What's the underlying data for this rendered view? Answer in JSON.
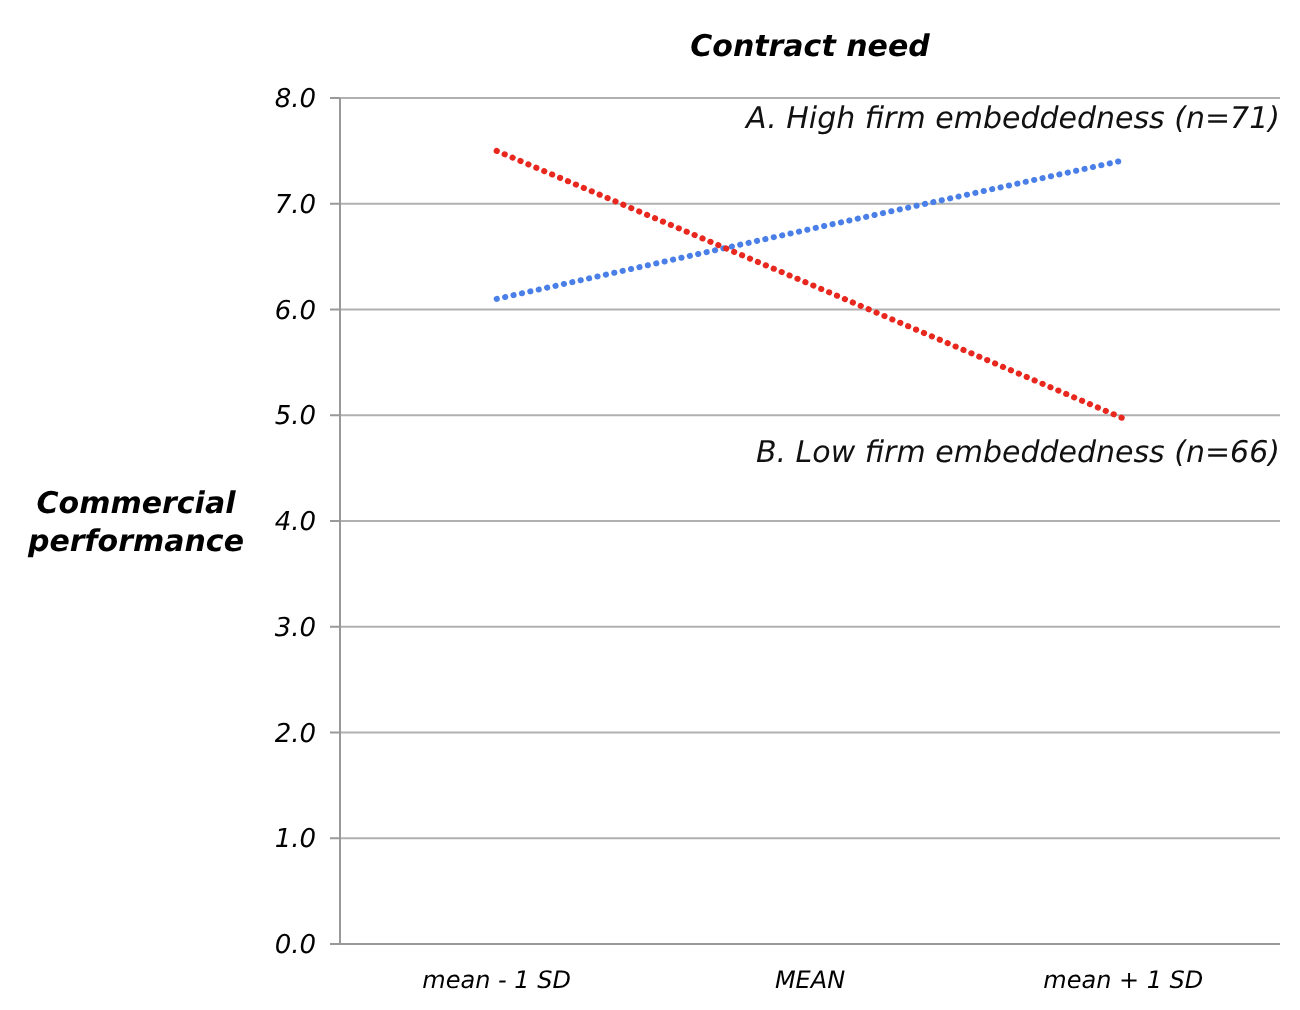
{
  "chart_data": {
    "type": "line",
    "title": "Contract need",
    "ylabel": "Commercial performance",
    "categories": [
      "mean - 1 SD",
      "MEAN",
      "mean + 1 SD"
    ],
    "series": [
      {
        "name": "A. High firm embeddedness (n=71)",
        "color": "#4a7fe8",
        "values": [
          6.1,
          6.76,
          7.41
        ]
      },
      {
        "name": "B. Low firm embeddedness (n=66)",
        "color": "#e8281e",
        "values": [
          7.5,
          6.24,
          4.97
        ]
      }
    ],
    "ylim": [
      0,
      8
    ],
    "yticks": [
      {
        "value": 0,
        "label": "0.0"
      },
      {
        "value": 1,
        "label": "1.0"
      },
      {
        "value": 2,
        "label": "2.0"
      },
      {
        "value": 3,
        "label": "3.0"
      },
      {
        "value": 4,
        "label": "4.0"
      },
      {
        "value": 5,
        "label": "5.0"
      },
      {
        "value": 6,
        "label": "6.0"
      },
      {
        "value": 7,
        "label": "7.0"
      },
      {
        "value": 8,
        "label": "8.0"
      }
    ],
    "grid": "y",
    "line_style": "dotted",
    "marker": "none"
  }
}
